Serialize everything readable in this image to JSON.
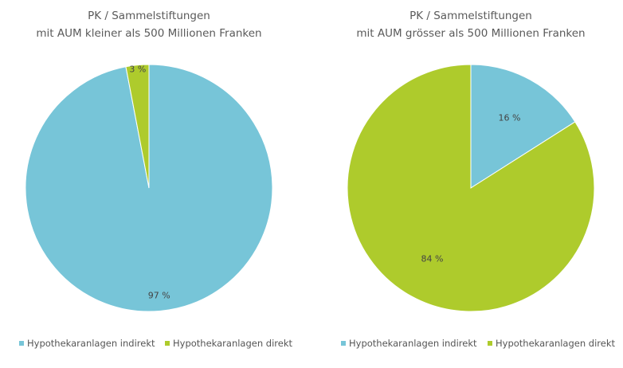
{
  "chart_data": [
    {
      "type": "pie",
      "title": [
        "PK / Sammelstiftungen",
        "mit AUM kleiner als 500 Millionen Franken"
      ],
      "categories": [
        "Hypothekaranlagen indirekt",
        "Hypothekaranlagen direkt"
      ],
      "values": [
        97,
        3
      ],
      "labels": [
        "97 %",
        "3 %"
      ],
      "colors": [
        "#77c5d8",
        "#aecb2c"
      ],
      "legend": "bottom"
    },
    {
      "type": "pie",
      "title": [
        "PK / Sammelstiftungen",
        "mit AUM grösser als 500 Millionen Franken"
      ],
      "categories": [
        "Hypothekaranlagen indirekt",
        "Hypothekaranlagen direkt"
      ],
      "values": [
        16,
        84
      ],
      "labels": [
        "16 %",
        "84 %"
      ],
      "colors": [
        "#77c5d8",
        "#aecb2c"
      ],
      "legend": "bottom"
    }
  ]
}
